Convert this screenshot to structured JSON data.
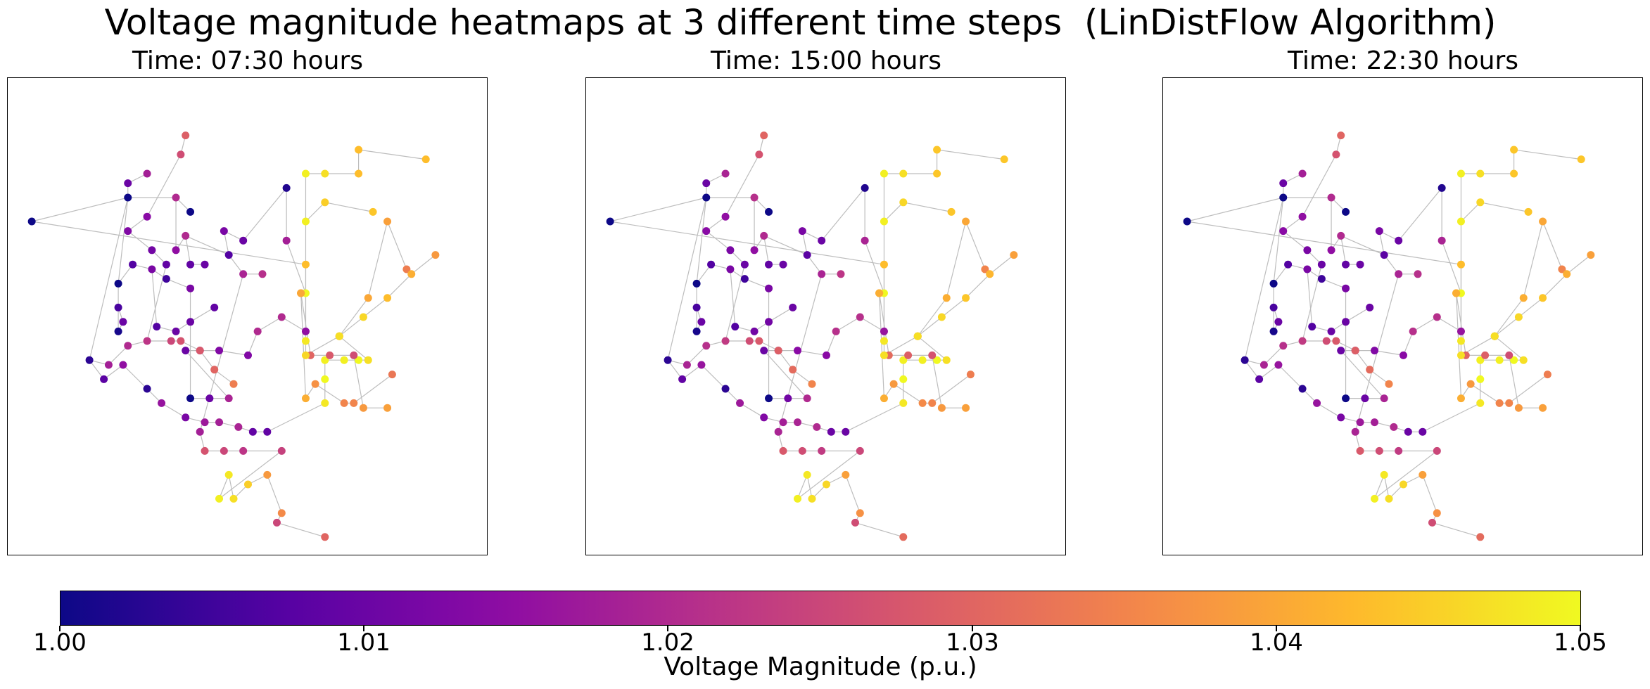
{
  "title": "Voltage magnitude heatmaps at 3 different time steps  (LinDistFlow Algorithm)",
  "colorbar": {
    "label": "Voltage Magnitude (p.u.)",
    "min": 1.0,
    "max": 1.05,
    "ticks": [
      "1.00",
      "1.01",
      "1.02",
      "1.03",
      "1.04",
      "1.05"
    ],
    "colormap": "plasma"
  },
  "chart_data": [
    {
      "type": "scatter",
      "title": "Time: 07:30 hours",
      "xlabel": "",
      "ylabel": "",
      "x": [
        0.05,
        0.25,
        0.25,
        0.29,
        0.35,
        0.38,
        0.45,
        0.49,
        0.35,
        0.37,
        0.38,
        0.41,
        0.46,
        0.49,
        0.53,
        0.58,
        0.58,
        0.62,
        0.62,
        0.62,
        0.17,
        0.2,
        0.24,
        0.29,
        0.32,
        0.37,
        0.41,
        0.44,
        0.48,
        0.51,
        0.54,
        0.66,
        0.66,
        0.66,
        0.7,
        0.73,
        0.75,
        0.69,
        0.69,
        0.75,
        0.79,
        0.83,
        0.61,
        0.61,
        0.61,
        0.63,
        0.67,
        0.72,
        0.74,
        0.79,
        0.62,
        0.64,
        0.7,
        0.72,
        0.8,
        0.62,
        0.66,
        0.76,
        0.62,
        0.66,
        0.73,
        0.73,
        0.87,
        0.62,
        0.69,
        0.74,
        0.79,
        0.84,
        0.89,
        0.23,
        0.26,
        0.3,
        0.33,
        0.38,
        0.23,
        0.24,
        0.23,
        0.31,
        0.35,
        0.38,
        0.43,
        0.38,
        0.42,
        0.46,
        0.37,
        0.4,
        0.44,
        0.5,
        0.52,
        0.57,
        0.62,
        0.4,
        0.41,
        0.45,
        0.49,
        0.57,
        0.21,
        0.25,
        0.29,
        0.34,
        0.36,
        0.4,
        0.43,
        0.47,
        0.33,
        0.3,
        0.25,
        0.29,
        0.36,
        0.37,
        0.44,
        0.46,
        0.47,
        0.5,
        0.54,
        0.57,
        0.56,
        0.66
      ],
      "y": [
        0.7,
        0.75,
        0.78,
        0.8,
        0.75,
        0.72,
        0.68,
        0.66,
        0.64,
        0.67,
        0.61,
        0.61,
        0.63,
        0.59,
        0.59,
        0.77,
        0.66,
        0.55,
        0.45,
        0.61,
        0.41,
        0.37,
        0.4,
        0.35,
        0.32,
        0.29,
        0.28,
        0.28,
        0.27,
        0.26,
        0.26,
        0.32,
        0.37,
        0.41,
        0.41,
        0.41,
        0.41,
        0.46,
        0.46,
        0.54,
        0.7,
        0.6,
        0.55,
        0.55,
        0.55,
        0.42,
        0.42,
        0.42,
        0.31,
        0.31,
        0.33,
        0.36,
        0.32,
        0.32,
        0.38,
        0.7,
        0.74,
        0.72,
        0.8,
        0.8,
        0.8,
        0.85,
        0.83,
        0.42,
        0.46,
        0.5,
        0.54,
        0.59,
        0.63,
        0.57,
        0.61,
        0.6,
        0.58,
        0.56,
        0.47,
        0.49,
        0.52,
        0.48,
        0.47,
        0.49,
        0.52,
        0.33,
        0.33,
        0.33,
        0.43,
        0.43,
        0.43,
        0.42,
        0.47,
        0.5,
        0.47,
        0.26,
        0.22,
        0.22,
        0.22,
        0.22,
        0.4,
        0.44,
        0.45,
        0.45,
        0.45,
        0.43,
        0.39,
        0.36,
        0.61,
        0.64,
        0.68,
        0.71,
        0.84,
        0.88,
        0.12,
        0.17,
        0.12,
        0.15,
        0.17,
        0.09,
        0.07,
        0.04
      ],
      "values": [
        1.0,
        1.0,
        1.01,
        1.018,
        1.02,
        1.0,
        1.012,
        1.01,
        1.015,
        1.02,
        1.009,
        1.01,
        1.007,
        1.019,
        1.021,
        1.002,
        1.018,
        1.05,
        1.048,
        1.043,
        1.003,
        1.008,
        1.015,
        1.003,
        1.016,
        1.012,
        1.017,
        1.018,
        1.019,
        1.009,
        1.009,
        1.048,
        1.05,
        1.049,
        1.049,
        1.05,
        1.047,
        1.039,
        1.04,
        1.04,
        1.039,
        1.034,
        1.04,
        1.04,
        1.04,
        1.03,
        1.028,
        1.026,
        1.038,
        1.039,
        1.041,
        1.037,
        1.035,
        1.035,
        1.033,
        1.049,
        1.045,
        1.044,
        1.049,
        1.047,
        1.043,
        1.043,
        1.043,
        1.046,
        1.047,
        1.046,
        1.043,
        1.041,
        1.038,
        1.0,
        1.007,
        1.012,
        1.005,
        1.012,
        1.001,
        1.01,
        1.006,
        1.007,
        1.01,
        1.01,
        1.009,
        1.0,
        1.01,
        1.019,
        1.01,
        1.016,
        1.013,
        1.013,
        1.02,
        1.02,
        1.015,
        1.018,
        1.027,
        1.025,
        1.022,
        1.024,
        1.018,
        1.02,
        1.022,
        1.025,
        1.027,
        1.028,
        1.03,
        1.034,
        1.009,
        1.011,
        1.013,
        1.014,
        1.026,
        1.029,
        1.049,
        1.048,
        1.047,
        1.045,
        1.038,
        1.036,
        1.025,
        1.03
      ]
    },
    {
      "type": "scatter",
      "title": "Time: 15:00 hours",
      "xlabel": "",
      "ylabel": "",
      "x": [
        0.05,
        0.25,
        0.25,
        0.29,
        0.35,
        0.38,
        0.45,
        0.49,
        0.35,
        0.37,
        0.38,
        0.41,
        0.46,
        0.49,
        0.53,
        0.58,
        0.58,
        0.62,
        0.62,
        0.62,
        0.17,
        0.2,
        0.24,
        0.29,
        0.32,
        0.37,
        0.41,
        0.44,
        0.48,
        0.51,
        0.54,
        0.66,
        0.66,
        0.66,
        0.7,
        0.73,
        0.75,
        0.69,
        0.69,
        0.75,
        0.79,
        0.83,
        0.61,
        0.61,
        0.61,
        0.63,
        0.67,
        0.72,
        0.74,
        0.79,
        0.62,
        0.64,
        0.7,
        0.72,
        0.8,
        0.62,
        0.66,
        0.76,
        0.62,
        0.66,
        0.73,
        0.73,
        0.87,
        0.62,
        0.69,
        0.74,
        0.79,
        0.84,
        0.89,
        0.23,
        0.26,
        0.3,
        0.33,
        0.38,
        0.23,
        0.24,
        0.23,
        0.31,
        0.35,
        0.38,
        0.43,
        0.38,
        0.42,
        0.46,
        0.37,
        0.4,
        0.44,
        0.5,
        0.52,
        0.57,
        0.62,
        0.4,
        0.41,
        0.45,
        0.49,
        0.57,
        0.21,
        0.25,
        0.29,
        0.34,
        0.36,
        0.4,
        0.43,
        0.47,
        0.33,
        0.3,
        0.25,
        0.29,
        0.36,
        0.37,
        0.44,
        0.46,
        0.47,
        0.5,
        0.54,
        0.57,
        0.56,
        0.66
      ],
      "y": [
        0.7,
        0.75,
        0.78,
        0.8,
        0.75,
        0.72,
        0.68,
        0.66,
        0.64,
        0.67,
        0.61,
        0.61,
        0.63,
        0.59,
        0.59,
        0.77,
        0.66,
        0.55,
        0.45,
        0.61,
        0.41,
        0.37,
        0.4,
        0.35,
        0.32,
        0.29,
        0.28,
        0.28,
        0.27,
        0.26,
        0.26,
        0.32,
        0.37,
        0.41,
        0.41,
        0.41,
        0.41,
        0.46,
        0.46,
        0.54,
        0.7,
        0.6,
        0.55,
        0.55,
        0.55,
        0.42,
        0.42,
        0.42,
        0.31,
        0.31,
        0.33,
        0.36,
        0.32,
        0.32,
        0.38,
        0.7,
        0.74,
        0.72,
        0.8,
        0.8,
        0.8,
        0.85,
        0.83,
        0.42,
        0.46,
        0.5,
        0.54,
        0.59,
        0.63,
        0.57,
        0.61,
        0.6,
        0.58,
        0.56,
        0.47,
        0.49,
        0.52,
        0.48,
        0.47,
        0.49,
        0.52,
        0.33,
        0.33,
        0.33,
        0.43,
        0.43,
        0.43,
        0.42,
        0.47,
        0.5,
        0.47,
        0.26,
        0.22,
        0.22,
        0.22,
        0.22,
        0.4,
        0.44,
        0.45,
        0.45,
        0.45,
        0.43,
        0.39,
        0.36,
        0.61,
        0.64,
        0.68,
        0.71,
        0.84,
        0.88,
        0.12,
        0.17,
        0.12,
        0.15,
        0.17,
        0.09,
        0.07,
        0.04
      ],
      "values": [
        1.0,
        1.0,
        1.01,
        1.019,
        1.021,
        1.0,
        1.012,
        1.01,
        1.015,
        1.02,
        1.009,
        1.01,
        1.008,
        1.019,
        1.022,
        1.002,
        1.019,
        1.05,
        1.048,
        1.043,
        1.003,
        1.009,
        1.016,
        1.003,
        1.017,
        1.013,
        1.018,
        1.019,
        1.02,
        1.01,
        1.01,
        1.048,
        1.05,
        1.049,
        1.049,
        1.05,
        1.047,
        1.039,
        1.04,
        1.041,
        1.04,
        1.035,
        1.041,
        1.041,
        1.041,
        1.031,
        1.029,
        1.027,
        1.038,
        1.039,
        1.041,
        1.038,
        1.036,
        1.035,
        1.034,
        1.049,
        1.046,
        1.044,
        1.049,
        1.047,
        1.044,
        1.044,
        1.044,
        1.047,
        1.047,
        1.046,
        1.044,
        1.042,
        1.039,
        1.0,
        1.007,
        1.012,
        1.005,
        1.012,
        1.001,
        1.01,
        1.006,
        1.007,
        1.011,
        1.011,
        1.01,
        1.0,
        1.011,
        1.02,
        1.01,
        1.017,
        1.014,
        1.014,
        1.021,
        1.021,
        1.016,
        1.019,
        1.028,
        1.026,
        1.023,
        1.025,
        1.019,
        1.021,
        1.023,
        1.026,
        1.028,
        1.029,
        1.031,
        1.035,
        1.01,
        1.012,
        1.014,
        1.015,
        1.027,
        1.03,
        1.049,
        1.048,
        1.047,
        1.046,
        1.039,
        1.037,
        1.026,
        1.031
      ]
    },
    {
      "type": "scatter",
      "title": "Time: 22:30 hours",
      "xlabel": "",
      "ylabel": "",
      "x": [
        0.05,
        0.25,
        0.25,
        0.29,
        0.35,
        0.38,
        0.45,
        0.49,
        0.35,
        0.37,
        0.38,
        0.41,
        0.46,
        0.49,
        0.53,
        0.58,
        0.58,
        0.62,
        0.62,
        0.62,
        0.17,
        0.2,
        0.24,
        0.29,
        0.32,
        0.37,
        0.41,
        0.44,
        0.48,
        0.51,
        0.54,
        0.66,
        0.66,
        0.66,
        0.7,
        0.73,
        0.75,
        0.69,
        0.69,
        0.75,
        0.79,
        0.83,
        0.61,
        0.61,
        0.61,
        0.63,
        0.67,
        0.72,
        0.74,
        0.79,
        0.62,
        0.64,
        0.7,
        0.72,
        0.8,
        0.62,
        0.66,
        0.76,
        0.62,
        0.66,
        0.73,
        0.73,
        0.87,
        0.62,
        0.69,
        0.74,
        0.79,
        0.84,
        0.89,
        0.23,
        0.26,
        0.3,
        0.33,
        0.38,
        0.23,
        0.24,
        0.23,
        0.31,
        0.35,
        0.38,
        0.43,
        0.38,
        0.42,
        0.46,
        0.37,
        0.4,
        0.44,
        0.5,
        0.52,
        0.57,
        0.62,
        0.4,
        0.41,
        0.45,
        0.49,
        0.57,
        0.21,
        0.25,
        0.29,
        0.34,
        0.36,
        0.4,
        0.43,
        0.47,
        0.33,
        0.3,
        0.25,
        0.29,
        0.36,
        0.37,
        0.44,
        0.46,
        0.47,
        0.5,
        0.54,
        0.57,
        0.56,
        0.66
      ],
      "y": [
        0.7,
        0.75,
        0.78,
        0.8,
        0.75,
        0.72,
        0.68,
        0.66,
        0.64,
        0.67,
        0.61,
        0.61,
        0.63,
        0.59,
        0.59,
        0.77,
        0.66,
        0.55,
        0.45,
        0.61,
        0.41,
        0.37,
        0.4,
        0.35,
        0.32,
        0.29,
        0.28,
        0.28,
        0.27,
        0.26,
        0.26,
        0.32,
        0.37,
        0.41,
        0.41,
        0.41,
        0.41,
        0.46,
        0.46,
        0.54,
        0.7,
        0.6,
        0.55,
        0.55,
        0.55,
        0.42,
        0.42,
        0.42,
        0.31,
        0.31,
        0.33,
        0.36,
        0.32,
        0.32,
        0.38,
        0.7,
        0.74,
        0.72,
        0.8,
        0.8,
        0.8,
        0.85,
        0.83,
        0.42,
        0.46,
        0.5,
        0.54,
        0.59,
        0.63,
        0.57,
        0.61,
        0.6,
        0.58,
        0.56,
        0.47,
        0.49,
        0.52,
        0.48,
        0.47,
        0.49,
        0.52,
        0.33,
        0.33,
        0.33,
        0.43,
        0.43,
        0.43,
        0.42,
        0.47,
        0.5,
        0.47,
        0.26,
        0.22,
        0.22,
        0.22,
        0.22,
        0.4,
        0.44,
        0.45,
        0.45,
        0.45,
        0.43,
        0.39,
        0.36,
        0.61,
        0.64,
        0.68,
        0.71,
        0.84,
        0.88,
        0.12,
        0.17,
        0.12,
        0.15,
        0.17,
        0.09,
        0.07,
        0.04
      ],
      "values": [
        1.0,
        1.0,
        1.01,
        1.018,
        1.02,
        1.0,
        1.012,
        1.01,
        1.015,
        1.02,
        1.009,
        1.01,
        1.008,
        1.019,
        1.021,
        1.002,
        1.019,
        1.05,
        1.048,
        1.043,
        1.003,
        1.008,
        1.016,
        1.003,
        1.016,
        1.012,
        1.017,
        1.018,
        1.02,
        1.01,
        1.01,
        1.048,
        1.05,
        1.049,
        1.049,
        1.05,
        1.047,
        1.04,
        1.04,
        1.041,
        1.04,
        1.035,
        1.041,
        1.041,
        1.041,
        1.03,
        1.029,
        1.026,
        1.038,
        1.039,
        1.041,
        1.038,
        1.035,
        1.035,
        1.034,
        1.049,
        1.046,
        1.044,
        1.049,
        1.047,
        1.044,
        1.044,
        1.044,
        1.047,
        1.047,
        1.046,
        1.044,
        1.041,
        1.039,
        1.0,
        1.007,
        1.012,
        1.005,
        1.012,
        1.001,
        1.01,
        1.006,
        1.007,
        1.01,
        1.01,
        1.01,
        1.0,
        1.01,
        1.019,
        1.01,
        1.016,
        1.013,
        1.014,
        1.021,
        1.021,
        1.016,
        1.019,
        1.028,
        1.026,
        1.023,
        1.025,
        1.019,
        1.021,
        1.023,
        1.026,
        1.028,
        1.029,
        1.031,
        1.035,
        1.01,
        1.012,
        1.014,
        1.015,
        1.027,
        1.03,
        1.049,
        1.048,
        1.047,
        1.046,
        1.039,
        1.037,
        1.026,
        1.031
      ]
    }
  ],
  "edges": [
    [
      0,
      1
    ],
    [
      1,
      2
    ],
    [
      2,
      3
    ],
    [
      1,
      4
    ],
    [
      4,
      5
    ],
    [
      4,
      8
    ],
    [
      8,
      9
    ],
    [
      9,
      10
    ],
    [
      10,
      11
    ],
    [
      9,
      12
    ],
    [
      12,
      13
    ],
    [
      13,
      14
    ],
    [
      12,
      6
    ],
    [
      6,
      7
    ],
    [
      7,
      15
    ],
    [
      15,
      16
    ],
    [
      16,
      17
    ],
    [
      17,
      18
    ],
    [
      18,
      19
    ],
    [
      19,
      0
    ],
    [
      1,
      20
    ],
    [
      20,
      21
    ],
    [
      21,
      22
    ],
    [
      22,
      23
    ],
    [
      23,
      24
    ],
    [
      24,
      25
    ],
    [
      25,
      26
    ],
    [
      26,
      27
    ],
    [
      27,
      28
    ],
    [
      28,
      29
    ],
    [
      29,
      30
    ],
    [
      30,
      31
    ],
    [
      31,
      32
    ],
    [
      32,
      33
    ],
    [
      33,
      34
    ],
    [
      34,
      35
    ],
    [
      35,
      36
    ],
    [
      36,
      37
    ],
    [
      37,
      38
    ],
    [
      38,
      39
    ],
    [
      39,
      40
    ],
    [
      40,
      41
    ],
    [
      17,
      42
    ],
    [
      42,
      43
    ],
    [
      43,
      44
    ],
    [
      44,
      45
    ],
    [
      45,
      46
    ],
    [
      46,
      47
    ],
    [
      47,
      48
    ],
    [
      48,
      49
    ],
    [
      42,
      50
    ],
    [
      50,
      51
    ],
    [
      51,
      52
    ],
    [
      52,
      53
    ],
    [
      53,
      54
    ],
    [
      17,
      55
    ],
    [
      55,
      56
    ],
    [
      56,
      57
    ],
    [
      55,
      58
    ],
    [
      58,
      59
    ],
    [
      59,
      60
    ],
    [
      60,
      61
    ],
    [
      61,
      62
    ],
    [
      18,
      63
    ],
    [
      63,
      64
    ],
    [
      64,
      65
    ],
    [
      65,
      66
    ],
    [
      66,
      67
    ],
    [
      67,
      68
    ],
    [
      1,
      69
    ],
    [
      69,
      70
    ],
    [
      70,
      71
    ],
    [
      71,
      72
    ],
    [
      72,
      73
    ],
    [
      69,
      74
    ],
    [
      74,
      75
    ],
    [
      75,
      76
    ],
    [
      71,
      77
    ],
    [
      77,
      78
    ],
    [
      78,
      79
    ],
    [
      79,
      80
    ],
    [
      73,
      81
    ],
    [
      81,
      82
    ],
    [
      82,
      83
    ],
    [
      83,
      84
    ],
    [
      84,
      85
    ],
    [
      85,
      86
    ],
    [
      86,
      87
    ],
    [
      87,
      88
    ],
    [
      88,
      89
    ],
    [
      89,
      90
    ],
    [
      90,
      18
    ],
    [
      13,
      91
    ],
    [
      91,
      92
    ],
    [
      92,
      93
    ],
    [
      93,
      94
    ],
    [
      94,
      95
    ],
    [
      20,
      96
    ],
    [
      96,
      97
    ],
    [
      97,
      98
    ],
    [
      98,
      99
    ],
    [
      99,
      100
    ],
    [
      100,
      101
    ],
    [
      101,
      102
    ],
    [
      102,
      103
    ],
    [
      98,
      104
    ],
    [
      104,
      105
    ],
    [
      105,
      106
    ],
    [
      106,
      107
    ],
    [
      107,
      108
    ],
    [
      108,
      109
    ],
    [
      95,
      110
    ],
    [
      110,
      111
    ],
    [
      111,
      112
    ],
    [
      112,
      113
    ],
    [
      113,
      114
    ],
    [
      114,
      115
    ],
    [
      115,
      116
    ],
    [
      116,
      117
    ]
  ]
}
